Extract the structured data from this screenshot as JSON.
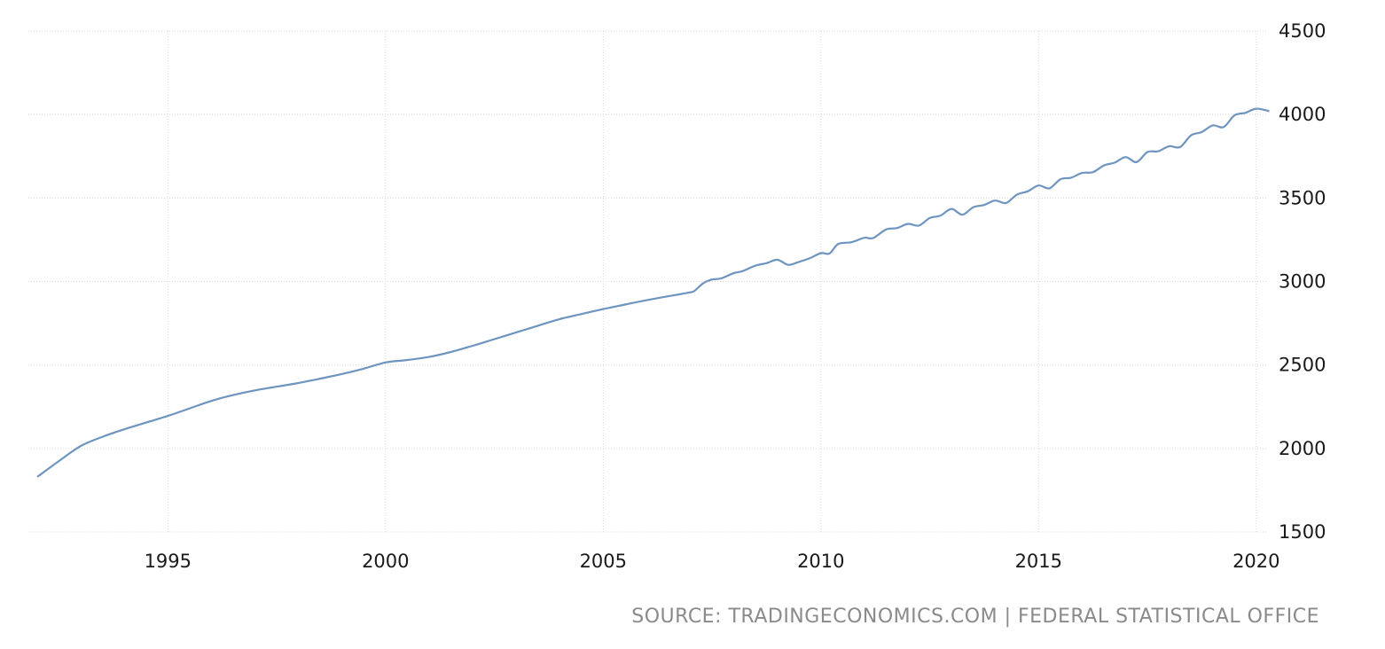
{
  "source": "SOURCE: TRADINGECONOMICS.COM | FEDERAL STATISTICAL OFFICE",
  "chart_data": {
    "type": "line",
    "title": "",
    "xlabel": "",
    "ylabel": "",
    "xlim": [
      1991.8,
      2020.3
    ],
    "ylim": [
      1500,
      4500
    ],
    "x_ticks": [
      "1995",
      "2000",
      "2005",
      "2010",
      "2015",
      "2020"
    ],
    "y_ticks": [
      "1500",
      "2000",
      "2500",
      "3000",
      "3500",
      "4000",
      "4500"
    ],
    "grid": true,
    "y_axis_side": "right",
    "colors": {
      "line": "#6e94c0",
      "grid": "#d9d9d9",
      "text": "#1a1a1a",
      "source": "#8a8a8a"
    },
    "series": [
      {
        "x": [
          1992.0,
          1992.5,
          1993.0,
          1993.5,
          1994.0,
          1994.5,
          1995.0,
          1995.5,
          1996.0,
          1996.5,
          1997.0,
          1997.5,
          1998.0,
          1998.5,
          1999.0,
          1999.5,
          2000.0,
          2000.5,
          2001.0,
          2001.5,
          2002.0,
          2002.5,
          2003.0,
          2003.5,
          2004.0,
          2004.5,
          2005.0,
          2005.5,
          2006.0,
          2006.5,
          2007.0,
          2007.1,
          2007.3,
          2007.5,
          2007.7,
          2008.0,
          2008.2,
          2008.5,
          2008.75,
          2009.0,
          2009.25,
          2009.5,
          2009.75,
          2010.0,
          2010.2,
          2010.4,
          2010.7,
          2011.0,
          2011.2,
          2011.5,
          2011.75,
          2012.0,
          2012.25,
          2012.5,
          2012.75,
          2013.0,
          2013.25,
          2013.5,
          2013.75,
          2014.0,
          2014.25,
          2014.5,
          2014.75,
          2015.0,
          2015.25,
          2015.5,
          2015.75,
          2016.0,
          2016.25,
          2016.5,
          2016.75,
          2017.0,
          2017.25,
          2017.5,
          2017.75,
          2018.0,
          2018.25,
          2018.5,
          2018.75,
          2019.0,
          2019.25,
          2019.5,
          2019.75,
          2020.0,
          2020.3
        ],
        "values": [
          1830,
          1925,
          2015,
          2070,
          2115,
          2155,
          2195,
          2240,
          2285,
          2320,
          2348,
          2370,
          2392,
          2418,
          2446,
          2478,
          2515,
          2530,
          2548,
          2578,
          2615,
          2655,
          2695,
          2735,
          2775,
          2805,
          2835,
          2862,
          2888,
          2912,
          2935,
          2945,
          2990,
          3012,
          3018,
          3050,
          3062,
          3095,
          3110,
          3130,
          3100,
          3118,
          3140,
          3170,
          3168,
          3225,
          3235,
          3262,
          3260,
          3312,
          3320,
          3345,
          3335,
          3380,
          3395,
          3435,
          3400,
          3445,
          3458,
          3485,
          3470,
          3520,
          3540,
          3575,
          3558,
          3612,
          3622,
          3650,
          3655,
          3695,
          3712,
          3745,
          3715,
          3775,
          3780,
          3810,
          3805,
          3875,
          3895,
          3935,
          3925,
          3995,
          4010,
          4035,
          4020
        ]
      }
    ]
  }
}
